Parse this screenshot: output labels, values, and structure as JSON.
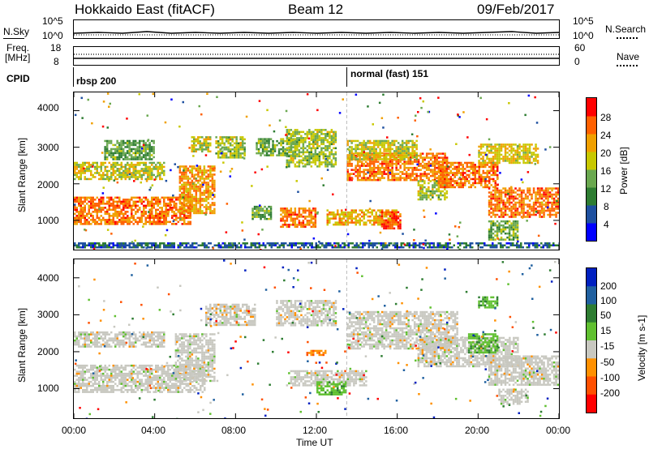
{
  "header": {
    "station": "Hokkaido East (fitACF)",
    "beam": "Beam 12",
    "date": "09/Feb/2017"
  },
  "strips": {
    "nsky_label": "N.Sky",
    "nsky_ticks": [
      "10^5",
      "10^0"
    ],
    "nsearch_label": "N.Search",
    "nsearch_ticks": [
      "10^5",
      "10^0"
    ],
    "freq_label": "Freq.",
    "freq_unit": "[MHz]",
    "freq_ticks": [
      "18",
      "8"
    ],
    "nave_label": "Nave",
    "nave_ticks": [
      "60",
      "0"
    ],
    "cpid_label": "CPID",
    "cpid_segments": [
      {
        "name": "rbsp 200",
        "start_h": 0
      },
      {
        "name": "normal (fast) 151",
        "start_h": 13.5
      }
    ]
  },
  "chart_data": [
    {
      "type": "heatmap",
      "title": "",
      "xlabel": "Time UT",
      "ylabel": "Slant Range [km]",
      "xlim": [
        0,
        24
      ],
      "ylim": [
        200,
        4500
      ],
      "x_ticks": [
        "00:00",
        "04:00",
        "08:00",
        "12:00",
        "16:00",
        "20:00",
        "00:00"
      ],
      "y_ticks": [
        1000,
        2000,
        3000,
        4000
      ],
      "colorbar": {
        "label": "Power [dB]",
        "range": [
          0,
          32
        ],
        "ticks": [
          4,
          8,
          12,
          16,
          20,
          24,
          28
        ],
        "colors": [
          "#0000ff",
          "#1e50a0",
          "#2e7d32",
          "#6aa84f",
          "#c8c800",
          "#f0a000",
          "#ff6000",
          "#ff0000"
        ]
      },
      "bands": [
        {
          "t0": 0.0,
          "t1": 5.8,
          "r0": 900,
          "r1": 1650,
          "value": 26
        },
        {
          "t0": 0.0,
          "t1": 4.5,
          "r0": 2150,
          "r1": 2600,
          "value": 18
        },
        {
          "t0": 1.5,
          "t1": 4.0,
          "r0": 2700,
          "r1": 3200,
          "value": 12
        },
        {
          "t0": 5.2,
          "t1": 7.0,
          "r0": 1200,
          "r1": 2500,
          "value": 24
        },
        {
          "t0": 5.8,
          "t1": 6.8,
          "r0": 2900,
          "r1": 3300,
          "value": 18
        },
        {
          "t0": 7.0,
          "t1": 8.5,
          "r0": 2700,
          "r1": 3300,
          "value": 16
        },
        {
          "t0": 9.0,
          "t1": 11.0,
          "r0": 2800,
          "r1": 3250,
          "value": 14
        },
        {
          "t0": 10.5,
          "t1": 13.0,
          "r0": 2500,
          "r1": 3500,
          "value": 16
        },
        {
          "t0": 8.8,
          "t1": 9.8,
          "r0": 1050,
          "r1": 1400,
          "value": 12
        },
        {
          "t0": 10.2,
          "t1": 12.0,
          "r0": 850,
          "r1": 1350,
          "value": 26
        },
        {
          "t0": 12.5,
          "t1": 16.0,
          "r0": 900,
          "r1": 1300,
          "value": 22
        },
        {
          "t0": 15.2,
          "t1": 16.2,
          "r0": 800,
          "r1": 1250,
          "value": 28
        },
        {
          "t0": 13.5,
          "t1": 18.5,
          "r0": 2100,
          "r1": 2850,
          "value": 26
        },
        {
          "t0": 13.5,
          "t1": 17.0,
          "r0": 2700,
          "r1": 3200,
          "value": 18
        },
        {
          "t0": 17.0,
          "t1": 18.5,
          "r0": 1600,
          "r1": 2100,
          "value": 16
        },
        {
          "t0": 18.0,
          "t1": 21.0,
          "r0": 1900,
          "r1": 2600,
          "value": 26
        },
        {
          "t0": 20.5,
          "t1": 24.0,
          "r0": 1100,
          "r1": 1900,
          "value": 26
        },
        {
          "t0": 20.0,
          "t1": 23.0,
          "r0": 2600,
          "r1": 3100,
          "value": 20
        },
        {
          "t0": 20.5,
          "t1": 22.0,
          "r0": 500,
          "r1": 1000,
          "value": 14
        },
        {
          "t0": 0.0,
          "t1": 24.0,
          "r0": 250,
          "r1": 400,
          "value": 6
        }
      ]
    },
    {
      "type": "heatmap",
      "title": "",
      "xlabel": "Time UT",
      "ylabel": "Slant Range [km]",
      "xlim": [
        0,
        24
      ],
      "ylim": [
        200,
        4500
      ],
      "x_ticks": [
        "00:00",
        "04:00",
        "08:00",
        "12:00",
        "16:00",
        "20:00",
        "00:00"
      ],
      "y_ticks": [
        1000,
        2000,
        3000,
        4000
      ],
      "colorbar": {
        "label": "Velocity [m s-1]",
        "tick_labels": [
          "200",
          "100",
          "50",
          "15",
          "-15",
          "-50",
          "-100",
          "-200"
        ],
        "colors": [
          "#0020c0",
          "#2060a0",
          "#2e7d32",
          "#60c030",
          "#c8c8c0",
          "#ff9000",
          "#ff5000",
          "#ff0000"
        ]
      },
      "bands": [
        {
          "t0": 0.0,
          "t1": 6.5,
          "r0": 900,
          "r1": 1650,
          "value": 0
        },
        {
          "t0": 0.0,
          "t1": 4.5,
          "r0": 2150,
          "r1": 2550,
          "value": 0
        },
        {
          "t0": 5.0,
          "t1": 7.0,
          "r0": 1200,
          "r1": 2500,
          "value": 0
        },
        {
          "t0": 6.5,
          "t1": 9.0,
          "r0": 2700,
          "r1": 3300,
          "value": 0
        },
        {
          "t0": 10.0,
          "t1": 13.0,
          "r0": 2700,
          "r1": 3400,
          "value": 0
        },
        {
          "t0": 10.5,
          "t1": 14.5,
          "r0": 1100,
          "r1": 1500,
          "value": 0
        },
        {
          "t0": 12.0,
          "t1": 13.5,
          "r0": 850,
          "r1": 1200,
          "value": 30
        },
        {
          "t0": 11.5,
          "t1": 12.5,
          "r0": 1900,
          "r1": 2050,
          "value": -40
        },
        {
          "t0": 13.5,
          "t1": 19.0,
          "r0": 2100,
          "r1": 3100,
          "value": 0
        },
        {
          "t0": 17.0,
          "t1": 22.0,
          "r0": 1600,
          "r1": 2400,
          "value": 0
        },
        {
          "t0": 20.5,
          "t1": 24.0,
          "r0": 1100,
          "r1": 1900,
          "value": 0
        },
        {
          "t0": 19.5,
          "t1": 21.0,
          "r0": 2000,
          "r1": 2500,
          "value": 30
        },
        {
          "t0": 20.0,
          "t1": 21.0,
          "r0": 3200,
          "r1": 3500,
          "value": 30
        },
        {
          "t0": 21.0,
          "t1": 22.5,
          "r0": 600,
          "r1": 1000,
          "value": 0
        }
      ]
    }
  ]
}
